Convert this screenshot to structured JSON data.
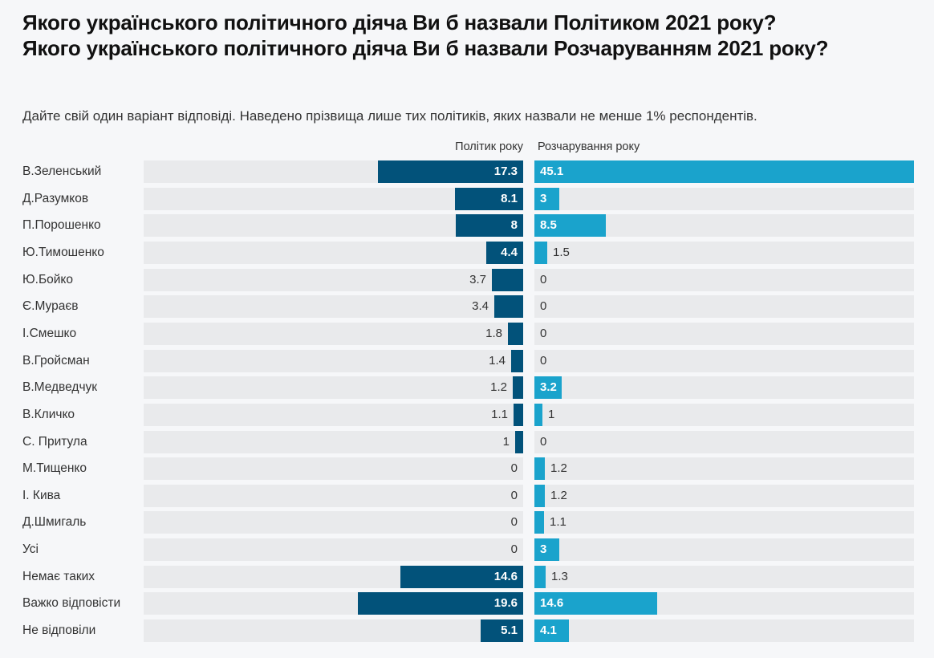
{
  "header": {
    "title_line1": "Якого українського політичного діяча Ви б назвали Політиком 2021 року?",
    "title_line2": "Якого українського політичного діяча Ви б назвали Розчаруванням 2021 року?",
    "subtitle": "Дайте свій один варіант відповіді. Наведено прізвища лише тих політиків, яких назвали не менше 1% респондентів."
  },
  "colors": {
    "politician": "#02527a",
    "disappointment": "#1aa3cc",
    "track": "#e9eaec",
    "background": "#f6f7f9"
  },
  "chart_data": {
    "type": "bar",
    "orientation": "horizontal",
    "layout": "split-columns",
    "title": "Якого українського політичного діяча Ви б назвали Політиком 2021 року? Якого українського політичного діяча Ви б назвали Розчаруванням 2021 року?",
    "subtitle": "Дайте свій один варіант відповіді. Наведено прізвища лише тих політиків, яких назвали не менше 1% респондентів.",
    "xlim": [
      0,
      45.1
    ],
    "unit": "%",
    "categories": [
      "В.Зеленський",
      "Д.Разумков",
      "П.Порошенко",
      "Ю.Тимошенко",
      "Ю.Бойко",
      "Є.Мураєв",
      "І.Смешко",
      "В.Гройсман",
      "В.Медведчук",
      "В.Кличко",
      "С. Притула",
      "М.Тищенко",
      "І. Кива",
      "Д.Шмигаль",
      "Усі",
      "Немає таких",
      "Важко відповісти",
      "Не відповіли"
    ],
    "series": [
      {
        "name": "Політик року",
        "values": [
          17.3,
          8.1,
          8,
          4.4,
          3.7,
          3.4,
          1.8,
          1.4,
          1.2,
          1.1,
          1,
          0,
          0,
          0,
          0,
          14.6,
          19.6,
          5.1
        ]
      },
      {
        "name": "Розчарування року",
        "values": [
          45.1,
          3,
          8.5,
          1.5,
          0,
          0,
          0,
          0,
          3.2,
          1,
          0,
          1.2,
          1.2,
          1.1,
          3,
          1.3,
          14.6,
          4.1
        ]
      }
    ]
  }
}
